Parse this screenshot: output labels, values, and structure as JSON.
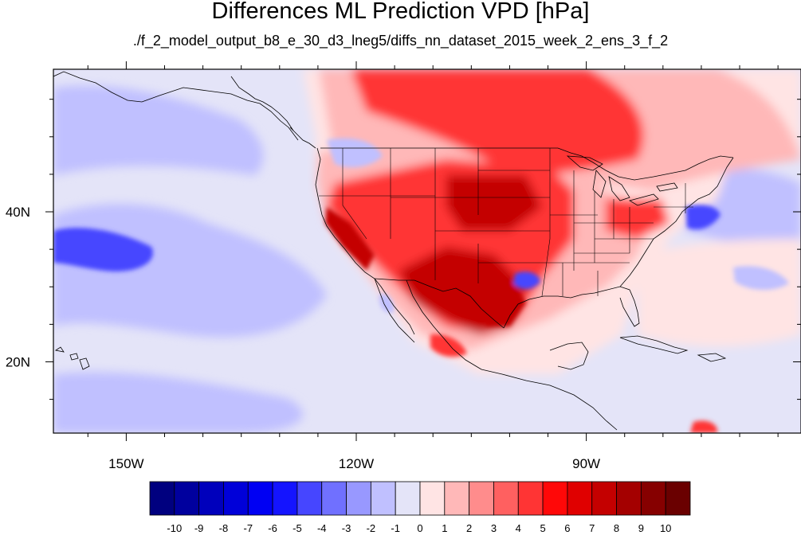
{
  "title": "Differences ML Prediction VPD [hPa]",
  "subtitle": "./f_2_model_output_b8_e_30_d3_lneg5/diffs_nn_dataset_2015_week_2_ens_3_f_2",
  "axes": {
    "lon_ticks": [
      {
        "label": "150W",
        "lon": -150
      },
      {
        "label": "120W",
        "lon": -120
      },
      {
        "label": "90W",
        "lon": -90
      }
    ],
    "lat_ticks": [
      {
        "label": "40N",
        "lat": 40
      },
      {
        "label": "20N",
        "lat": 20
      }
    ],
    "lon_range": [
      -159.5,
      -62
    ],
    "lat_range": [
      10.5,
      59
    ]
  },
  "colorbar": {
    "labels": [
      "-10",
      "-9",
      "-8",
      "-7",
      "-6",
      "-5",
      "-4",
      "-3",
      "-2",
      "-1",
      "0",
      "1",
      "2",
      "3",
      "4",
      "5",
      "6",
      "7",
      "8",
      "9",
      "10"
    ],
    "colors": [
      "#00007f",
      "#00009e",
      "#0000bc",
      "#0000d9",
      "#0000f3",
      "#1414ff",
      "#4646ff",
      "#7070ff",
      "#9898ff",
      "#c0c0ff",
      "#e4e4f8",
      "#ffe4e4",
      "#ffb8b8",
      "#ff8c8c",
      "#ff6060",
      "#ff3434",
      "#ff0808",
      "#e00000",
      "#c40000",
      "#a40000",
      "#860000",
      "#6a0000"
    ]
  },
  "field_colors": {
    "ocean_light_blue": "#e4e4f8",
    "ocean_blue": "#c0c0ff",
    "strong_blue": "#4646ff",
    "pale_red": "#ffe4e4",
    "light_red": "#ffb8b8",
    "red": "#ff3434",
    "dark_red": "#c40000"
  }
}
